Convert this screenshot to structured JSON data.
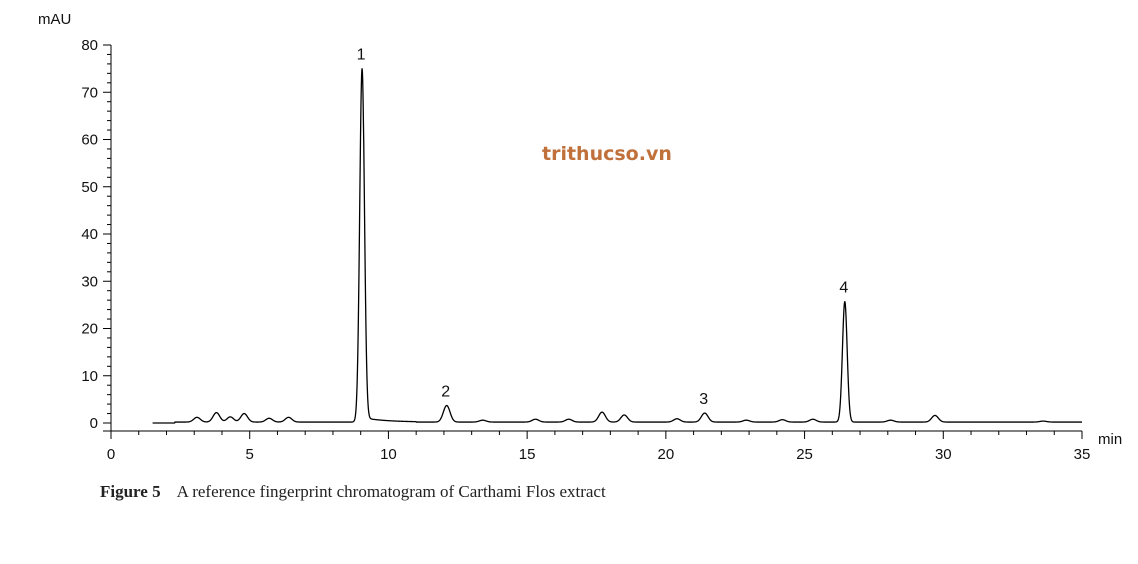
{
  "chart_data": {
    "type": "line",
    "ylabel": "mAU",
    "xunit": "min",
    "xlim": [
      0,
      35
    ],
    "ylim": [
      0,
      80
    ],
    "x_ticks": [
      0,
      5,
      10,
      15,
      20,
      25,
      30,
      35
    ],
    "y_ticks": [
      0,
      10,
      20,
      30,
      40,
      50,
      60,
      70,
      80
    ],
    "grid": false,
    "series": [
      {
        "baseline": 0.2,
        "peaks": [
          {
            "x": 3.1,
            "y": 1.2
          },
          {
            "x": 3.8,
            "y": 2.2
          },
          {
            "x": 4.3,
            "y": 1.3
          },
          {
            "x": 4.8,
            "y": 2.0
          },
          {
            "x": 5.7,
            "y": 1.0
          },
          {
            "x": 6.4,
            "y": 1.2
          },
          {
            "x": 9.05,
            "y": 75
          },
          {
            "x": 12.1,
            "y": 3.7
          },
          {
            "x": 13.4,
            "y": 0.6
          },
          {
            "x": 15.3,
            "y": 0.8
          },
          {
            "x": 16.5,
            "y": 0.8
          },
          {
            "x": 17.7,
            "y": 2.3
          },
          {
            "x": 18.5,
            "y": 1.7
          },
          {
            "x": 20.4,
            "y": 0.9
          },
          {
            "x": 21.4,
            "y": 2.1
          },
          {
            "x": 22.9,
            "y": 0.6
          },
          {
            "x": 24.2,
            "y": 0.7
          },
          {
            "x": 25.3,
            "y": 0.8
          },
          {
            "x": 26.45,
            "y": 25.7
          },
          {
            "x": 28.1,
            "y": 0.6
          },
          {
            "x": 29.7,
            "y": 1.6
          },
          {
            "x": 33.6,
            "y": 0.4
          }
        ]
      }
    ],
    "annotations": [
      {
        "text": "1",
        "x": 9.05,
        "y": 75
      },
      {
        "text": "2",
        "x": 12.1,
        "y": 3.7
      },
      {
        "text": "3",
        "x": 21.4,
        "y": 2.1
      },
      {
        "text": "4",
        "x": 26.45,
        "y": 25.7
      }
    ]
  },
  "watermark": {
    "text": "trithucso.vn",
    "color": "#c0703a"
  },
  "caption": {
    "figure_number": "Figure 5",
    "text": "A reference fingerprint chromatogram of Carthami Flos extract"
  }
}
